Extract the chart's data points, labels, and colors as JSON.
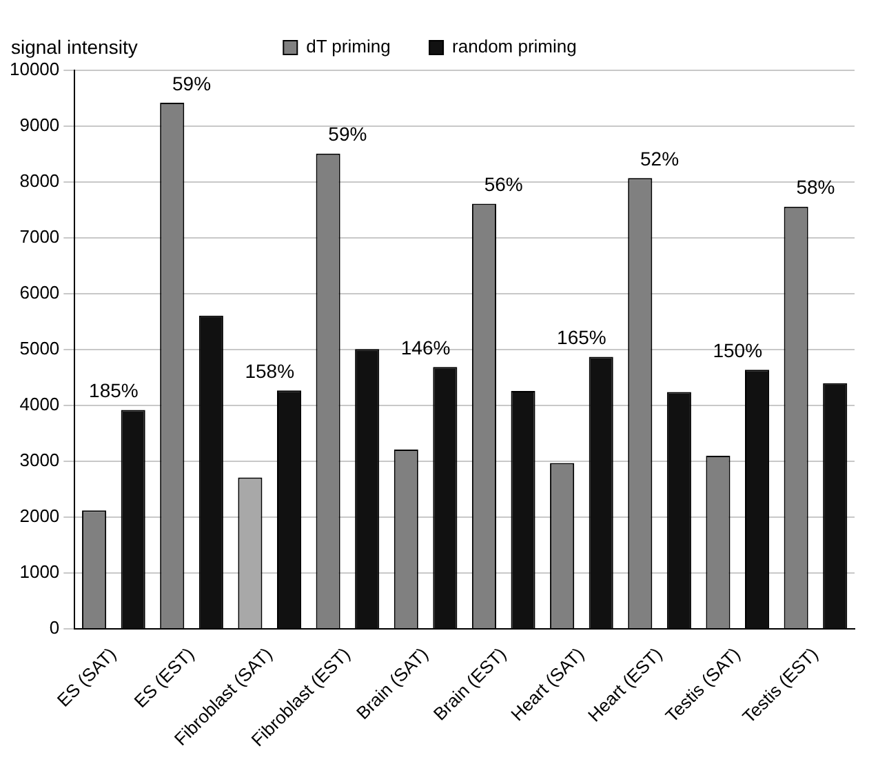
{
  "chart_data": {
    "type": "bar",
    "ylabel": "signal intensity",
    "categories": [
      "ES (SAT)",
      "ES (EST)",
      "Fibroblast (SAT)",
      "Fibroblast (EST)",
      "Brain (SAT)",
      "Brain (EST)",
      "Heart (SAT)",
      "Heart (EST)",
      "Testis (SAT)",
      "Testis (EST)"
    ],
    "series": [
      {
        "name": "dT priming",
        "color": "#808080",
        "colors": [
          "#808080",
          "#808080",
          "#a8a8a8",
          "#808080",
          "#808080",
          "#808080",
          "#808080",
          "#808080",
          "#808080",
          "#808080"
        ],
        "values": [
          2120,
          9420,
          2710,
          8510,
          3210,
          7610,
          2970,
          8070,
          3100,
          7560
        ]
      },
      {
        "name": "random priming",
        "color": "#111111",
        "values": [
          3920,
          5610,
          4270,
          5010,
          4690,
          4260,
          4870,
          4240,
          4640,
          4400
        ]
      }
    ],
    "ylim": [
      0,
      10000
    ],
    "yticks": [
      0,
      1000,
      2000,
      3000,
      4000,
      5000,
      6000,
      7000,
      8000,
      9000,
      10000
    ],
    "grid": "y",
    "legend": "top",
    "annotations": [
      "185%",
      "59%",
      "158%",
      "59%",
      "146%",
      "56%",
      "165%",
      "52%",
      "150%",
      "58%"
    ]
  }
}
